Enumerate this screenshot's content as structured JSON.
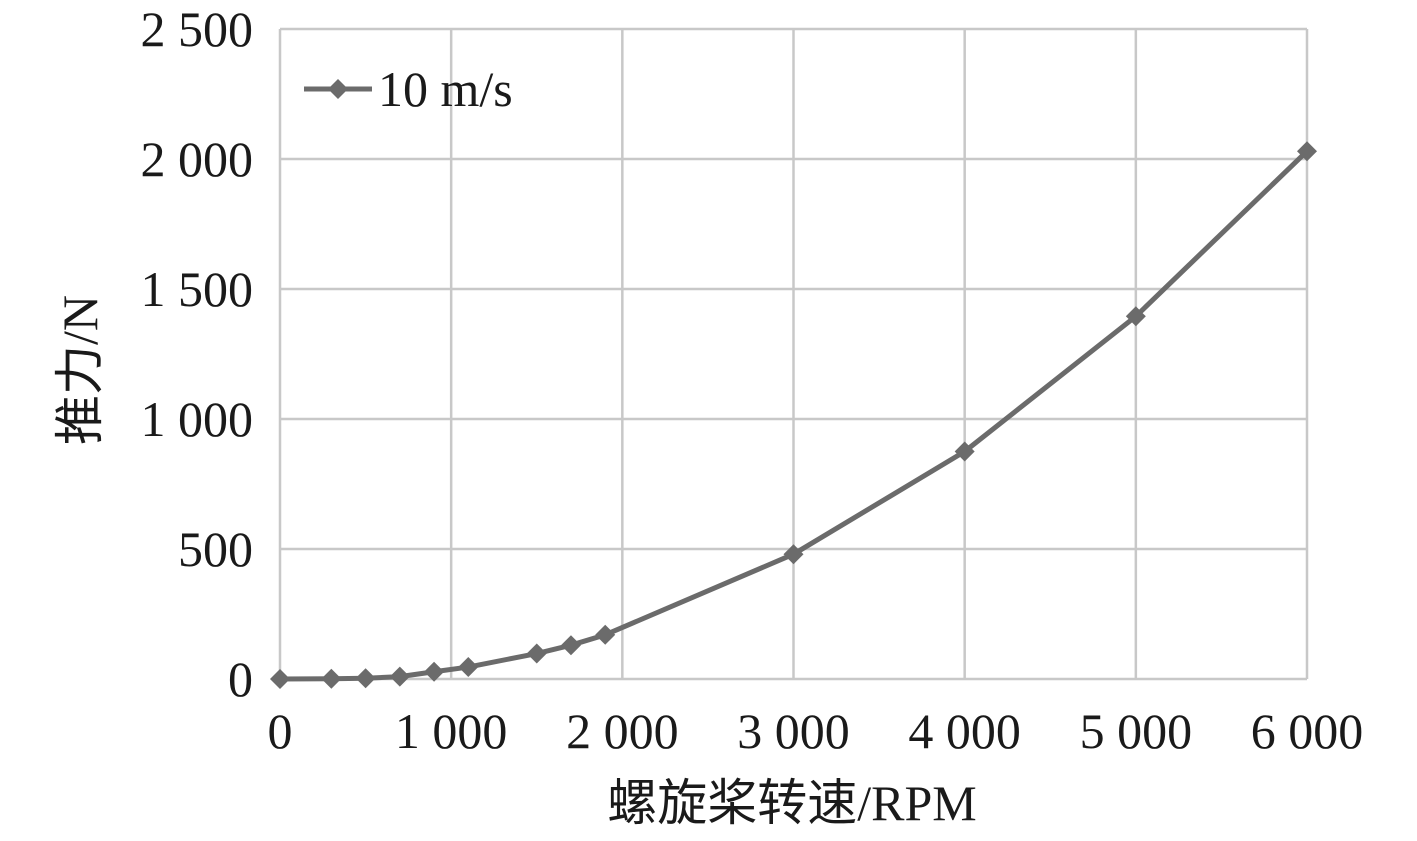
{
  "chart_data": {
    "type": "line",
    "title": "",
    "xlabel": "螺旋桨转速/RPM",
    "ylabel": "推力/N",
    "xlim": [
      0,
      6000
    ],
    "ylim": [
      0,
      2500
    ],
    "x_ticks": [
      0,
      1000,
      2000,
      3000,
      4000,
      5000,
      6000
    ],
    "x_tick_labels": [
      "0",
      "1 000",
      "2 000",
      "3 000",
      "4 000",
      "5 000",
      "6 000"
    ],
    "y_ticks": [
      0,
      500,
      1000,
      1500,
      2000,
      2500
    ],
    "y_tick_labels": [
      "0",
      "500",
      "1 000",
      "1 500",
      "2 000",
      "2 500"
    ],
    "grid": true,
    "legend_position": "top-left",
    "series": [
      {
        "name": "10 m/s",
        "color": "#6b6b6b",
        "marker": "diamond",
        "x": [
          0,
          300,
          500,
          700,
          900,
          1100,
          1500,
          1700,
          1900,
          3000,
          4000,
          5000,
          6000
        ],
        "y": [
          0,
          1,
          3,
          9,
          28,
          46,
          98,
          130,
          170,
          480,
          875,
          1395,
          2030
        ]
      }
    ]
  }
}
